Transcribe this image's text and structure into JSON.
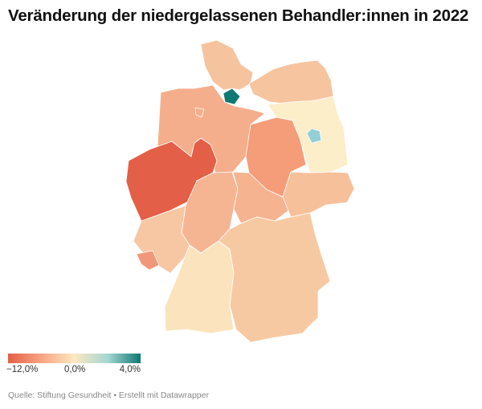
{
  "title": "Veränderung der niedergelassenen Behandler:innen in 2022",
  "map": {
    "regions": [
      {
        "name": "Schleswig-Holstein",
        "color": "#f6c39f"
      },
      {
        "name": "Hamburg",
        "color": "#0e7872"
      },
      {
        "name": "Mecklenburg-Vorpommern",
        "color": "#f6c49f"
      },
      {
        "name": "Brandenburg",
        "color": "#fbeec9"
      },
      {
        "name": "Berlin",
        "color": "#93cfd6"
      },
      {
        "name": "Niedersachsen",
        "color": "#f5ae8b"
      },
      {
        "name": "Bremen",
        "color": "#f5ae8b"
      },
      {
        "name": "Sachsen-Anhalt",
        "color": "#f59c79"
      },
      {
        "name": "Nordrhein-Westfalen",
        "color": "#e35f47"
      },
      {
        "name": "Hessen",
        "color": "#f5b593"
      },
      {
        "name": "Thüringen",
        "color": "#f5b38f"
      },
      {
        "name": "Sachsen",
        "color": "#f6c09b"
      },
      {
        "name": "Rheinland-Pfalz",
        "color": "#f7c7a3"
      },
      {
        "name": "Saarland",
        "color": "#f1977a"
      },
      {
        "name": "Baden-Württemberg",
        "color": "#fbe4bd"
      },
      {
        "name": "Bayern",
        "color": "#f7c9a2"
      }
    ]
  },
  "legend": {
    "min_label": "−12,0%",
    "mid_label": "0,0%",
    "max_label": "4,0%",
    "colors": [
      "#e35f47",
      "#f7a482",
      "#fbe8c0",
      "#a6d8d3",
      "#0e7872"
    ]
  },
  "source": "Quelle: Stiftung Gesundheit • Erstellt mit Datawrapper"
}
